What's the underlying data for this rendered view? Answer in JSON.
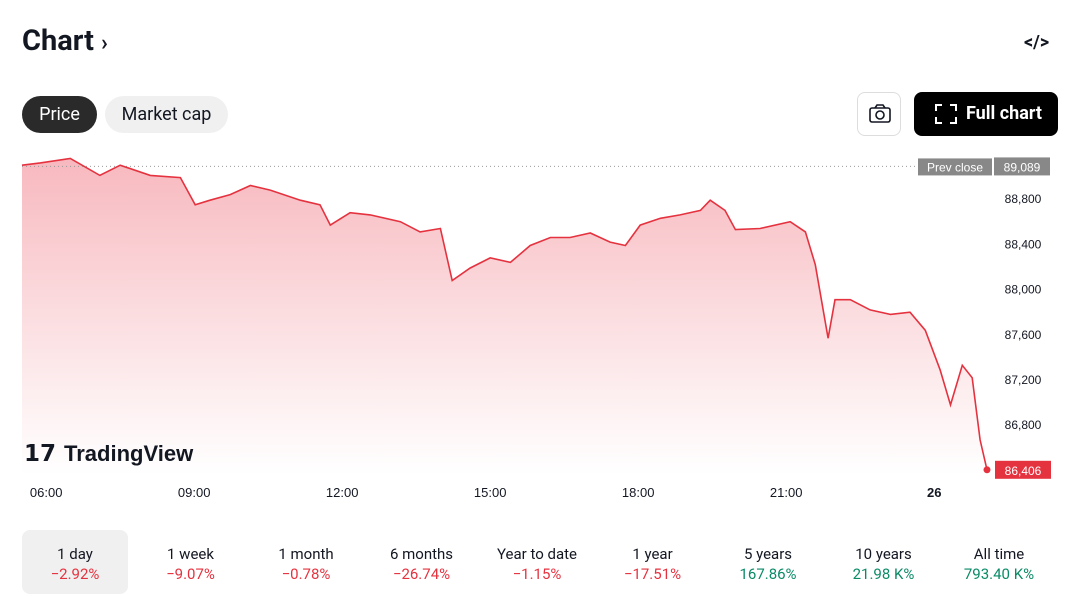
{
  "header": {
    "title": "Chart"
  },
  "tabs": [
    "Price",
    "Market cap"
  ],
  "full_chart": "Full chart",
  "watermark": "TradingView",
  "chart_data": {
    "type": "line",
    "color": "#e5323f",
    "x": [
      5.51,
      5.88,
      6.49,
      7.09,
      7.5,
      8.11,
      8.72,
      9.02,
      9.32,
      9.73,
      10.14,
      10.54,
      11.15,
      11.55,
      11.76,
      12.16,
      12.57,
      13.18,
      13.58,
      13.99,
      14.23,
      14.59,
      15.0,
      15.41,
      15.81,
      16.22,
      16.62,
      17.03,
      17.43,
      17.74,
      18.04,
      18.45,
      18.85,
      19.26,
      19.46,
      19.76,
      19.97,
      20.47,
      21.08,
      21.39,
      21.59,
      21.85,
      21.99,
      22.3,
      22.7,
      23.11,
      23.51,
      23.82,
      24.12,
      24.33,
      24.57,
      24.77,
      24.93,
      25.07
    ],
    "values": [
      89100,
      89120,
      89160,
      89010,
      89100,
      89010,
      88990,
      88750,
      88790,
      88840,
      88920,
      88880,
      88790,
      88750,
      88570,
      88680,
      88660,
      88600,
      88510,
      88540,
      88080,
      88190,
      88280,
      88240,
      88390,
      88460,
      88460,
      88500,
      88420,
      88390,
      88570,
      88630,
      88660,
      88700,
      88790,
      88700,
      88530,
      88540,
      88600,
      88510,
      88220,
      87570,
      87910,
      87910,
      87820,
      87780,
      87800,
      87640,
      87290,
      86980,
      87330,
      87220,
      86670,
      86406
    ],
    "xlim": [
      5.51,
      25.07
    ],
    "xticks": [
      {
        "value": 6,
        "label": "06:00"
      },
      {
        "value": 9,
        "label": "09:00"
      },
      {
        "value": 12,
        "label": "12:00"
      },
      {
        "value": 15,
        "label": "15:00"
      },
      {
        "value": 18,
        "label": "18:00"
      },
      {
        "value": 21,
        "label": "21:00"
      },
      {
        "value": 24,
        "label": "26"
      }
    ],
    "ylim": [
      86360,
      89190
    ],
    "yticks": [
      {
        "value": 86800,
        "label": "86,800"
      },
      {
        "value": 87200,
        "label": "87,200"
      },
      {
        "value": 87600,
        "label": "87,600"
      },
      {
        "value": 88000,
        "label": "88,000"
      },
      {
        "value": 88400,
        "label": "88,400"
      },
      {
        "value": 88800,
        "label": "88,800"
      }
    ],
    "prev_close": {
      "text": "Prev close",
      "value": 89089,
      "label": "89,089"
    },
    "last": {
      "value": 86406,
      "label": "86,406"
    }
  },
  "periods": [
    {
      "label": "1 day",
      "change": "−2.92%"
    },
    {
      "label": "1 week",
      "change": "−9.07%"
    },
    {
      "label": "1 month",
      "change": "−0.78%"
    },
    {
      "label": "6 months",
      "change": "−26.74%"
    },
    {
      "label": "Year to date",
      "change": "−1.15%"
    },
    {
      "label": "1 year",
      "change": "−17.51%"
    },
    {
      "label": "5 years",
      "change": "167.86%"
    },
    {
      "label": "10 years",
      "change": "21.98 K%"
    },
    {
      "label": "All time",
      "change": "793.40 K%"
    }
  ]
}
